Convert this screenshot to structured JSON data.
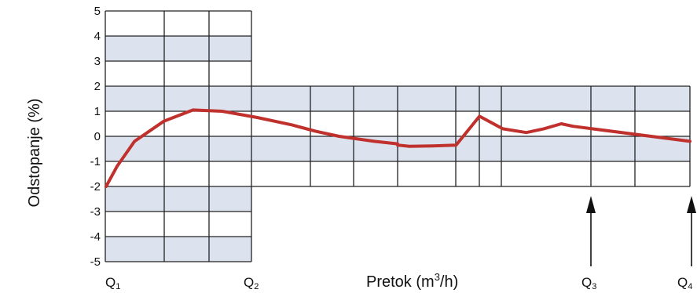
{
  "chart_data": {
    "type": "line",
    "title": "",
    "ylabel": "Odstopanje (%)",
    "xlabel_prefix": "Pretok (m",
    "xlabel_sup": "3",
    "xlabel_suffix": "/h)",
    "ylim": [
      -5,
      5
    ],
    "yticks": [
      "5",
      "4",
      "3",
      "2",
      "1",
      "0",
      "-1",
      "-2",
      "-3",
      "-4",
      "-5"
    ],
    "grid": true,
    "flow_points": [
      {
        "main": "Q",
        "sub": "1"
      },
      {
        "main": "Q",
        "sub": "2"
      },
      {
        "main": "Q",
        "sub": "3"
      },
      {
        "main": "Q",
        "sub": "4"
      }
    ],
    "tolerance_bands": [
      {
        "range": "Q1-Q2",
        "limit_percent": 5
      },
      {
        "range": "Q2-Q4",
        "limit_percent": 2
      }
    ],
    "series": [
      {
        "color": "#c0302c",
        "x_relative": [
          0,
          0.02,
          0.05,
          0.1,
          0.15,
          0.2,
          0.26,
          0.32,
          0.36,
          0.4,
          0.46,
          0.5,
          0.5,
          0.52,
          0.56,
          0.6,
          0.64,
          0.68,
          0.72,
          0.75,
          0.78,
          0.8,
          1.0
        ],
        "y": [
          -2.0,
          -1.2,
          -0.2,
          0.6,
          1.05,
          1.0,
          0.75,
          0.45,
          0.2,
          0.0,
          -0.2,
          -0.3,
          -0.35,
          -0.4,
          -0.38,
          -0.35,
          0.8,
          0.3,
          0.15,
          0.3,
          0.5,
          0.4,
          -0.2
        ]
      }
    ]
  },
  "colors": {
    "band": "#dce3ef",
    "grid": "#222222",
    "curve": "#c0302c",
    "arrow": "#111111"
  }
}
